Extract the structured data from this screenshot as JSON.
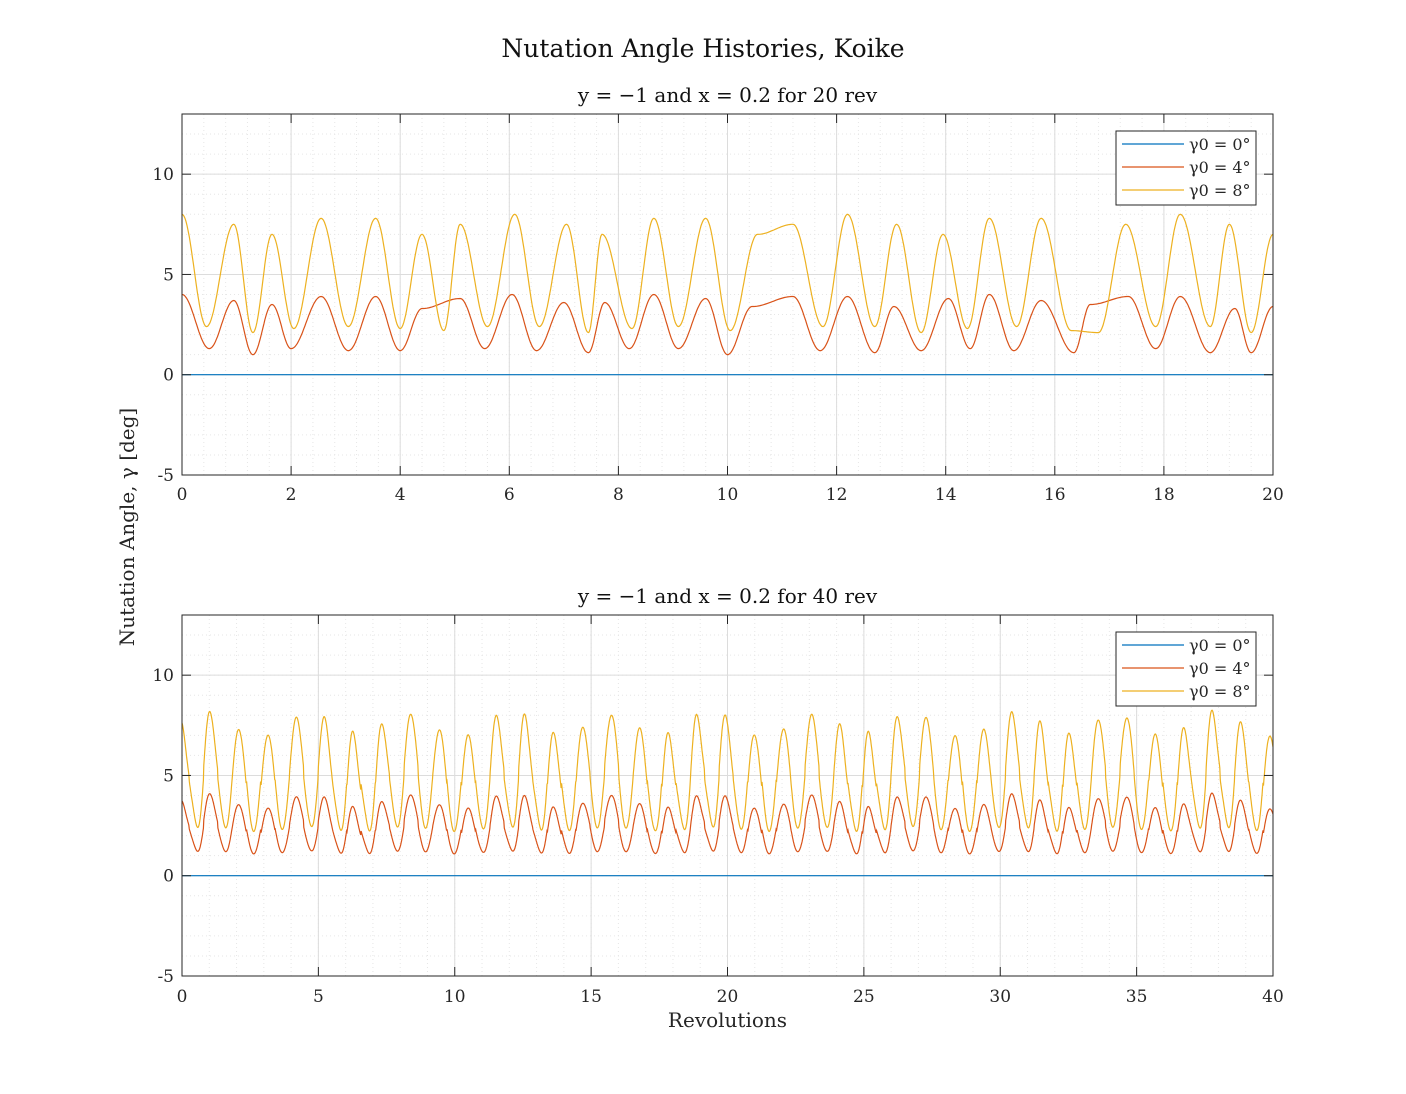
{
  "figure": {
    "title": "Nutation Angle Histories, Koike",
    "ylabel": "Nutation Angle, γ [deg]",
    "xlabel": "Revolutions"
  },
  "colors": {
    "gamma0": "#0072BD",
    "gamma4": "#D95319",
    "gamma8": "#EDB120",
    "grid": "#dcdcdc",
    "axis": "#262626"
  },
  "chart_data": [
    {
      "type": "line",
      "title": "y = −1 and x = 0.2 for 20 rev",
      "xlabel": "",
      "ylabel": "Nutation Angle, γ [deg]",
      "xlim": [
        0,
        20
      ],
      "ylim": [
        -5,
        13
      ],
      "xticks": [
        0,
        2,
        4,
        6,
        8,
        10,
        12,
        14,
        16,
        18,
        20
      ],
      "yticks": [
        -5,
        0,
        5,
        10
      ],
      "grid": true,
      "minor_grid": true,
      "legend_position": "top-right",
      "oscillation_period_rev": 1.05,
      "series": [
        {
          "name": "γ0 = 0°",
          "color": "#0072BD",
          "constant": 0,
          "peaks_x": [],
          "peaks_y": []
        },
        {
          "name": "γ0 = 4°",
          "color": "#D95319",
          "x": [
            0,
            0.5,
            0.95,
            1.3,
            1.65,
            2.0,
            2.55,
            3.05,
            3.55,
            4.0,
            4.4,
            5.1,
            5.55,
            6.05,
            6.5,
            7.0,
            7.45,
            7.75,
            8.2,
            8.65,
            9.1,
            9.6,
            10.0,
            10.45,
            11.2,
            11.7,
            12.2,
            12.7,
            13.05,
            13.55,
            14.05,
            14.45,
            14.8,
            15.25,
            15.75,
            16.35,
            16.65,
            17.35,
            17.85,
            18.3,
            18.85,
            19.3,
            19.6,
            20.0
          ],
          "y": [
            4.0,
            1.3,
            3.7,
            1.0,
            3.5,
            1.3,
            3.9,
            1.2,
            3.9,
            1.2,
            3.3,
            3.8,
            1.3,
            4.0,
            1.2,
            3.6,
            1.1,
            3.6,
            1.3,
            4.0,
            1.3,
            3.8,
            1.0,
            3.4,
            3.9,
            1.2,
            3.9,
            1.1,
            3.4,
            1.2,
            3.8,
            1.3,
            4.0,
            1.2,
            3.7,
            1.1,
            3.5,
            3.9,
            1.3,
            3.9,
            1.1,
            3.3,
            1.1,
            3.4
          ]
        },
        {
          "name": "γ0 = 8°",
          "color": "#EDB120",
          "x": [
            0,
            0.45,
            0.95,
            1.3,
            1.65,
            2.05,
            2.55,
            3.05,
            3.55,
            4.0,
            4.4,
            4.8,
            5.1,
            5.6,
            6.1,
            6.55,
            7.05,
            7.45,
            7.7,
            8.25,
            8.65,
            9.1,
            9.6,
            10.05,
            10.55,
            11.2,
            11.75,
            12.2,
            12.7,
            13.1,
            13.55,
            13.95,
            14.4,
            14.8,
            15.3,
            15.75,
            16.3,
            16.8,
            17.3,
            17.85,
            18.3,
            18.85,
            19.2,
            19.6,
            20.0
          ],
          "y": [
            8.0,
            2.4,
            7.5,
            2.1,
            7.0,
            2.3,
            7.8,
            2.4,
            7.8,
            2.3,
            7.0,
            2.2,
            7.5,
            2.4,
            8.0,
            2.4,
            7.5,
            2.1,
            7.0,
            2.3,
            7.8,
            2.4,
            7.8,
            2.2,
            7.0,
            7.5,
            2.4,
            8.0,
            2.4,
            7.5,
            2.1,
            7.0,
            2.3,
            7.8,
            2.4,
            7.8,
            2.2,
            2.1,
            7.5,
            2.4,
            8.0,
            2.4,
            7.5,
            2.1,
            7.0
          ]
        }
      ]
    },
    {
      "type": "line",
      "title": "y = −1 and x = 0.2 for 40 rev",
      "xlabel": "Revolutions",
      "ylabel": "Nutation Angle, γ [deg]",
      "xlim": [
        0,
        40
      ],
      "ylim": [
        -5,
        13
      ],
      "xticks": [
        0,
        5,
        10,
        15,
        20,
        25,
        30,
        35,
        40
      ],
      "yticks": [
        -5,
        0,
        5,
        10
      ],
      "grid": true,
      "minor_grid": true,
      "legend_position": "top-right",
      "oscillation_period_rev": 1.05,
      "series": [
        {
          "name": "γ0 = 0°",
          "color": "#0072BD",
          "constant": 0
        },
        {
          "name": "γ0 = 4°",
          "color": "#D95319",
          "max_range": [
            3.3,
            4.0
          ],
          "min_range": [
            1.0,
            1.3
          ],
          "start": 4.0,
          "end": 3.2
        },
        {
          "name": "γ0 = 8°",
          "color": "#EDB120",
          "max_range": [
            6.9,
            8.0
          ],
          "min_range": [
            2.1,
            2.5
          ],
          "start": 8.0,
          "end": 7.3
        }
      ]
    }
  ]
}
